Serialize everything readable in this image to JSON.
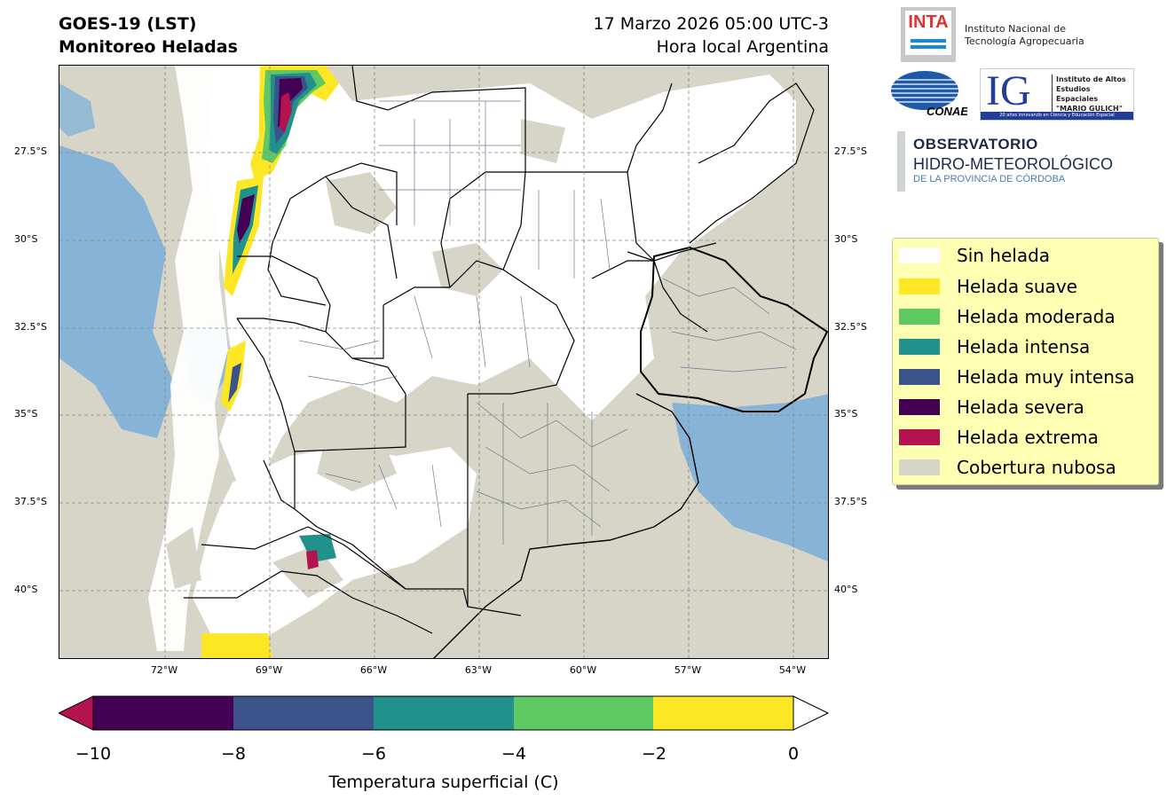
{
  "header": {
    "title_line1": "GOES-19 (LST)",
    "title_line2": "Monitoreo Heladas",
    "date_line1": "17 Marzo 2026 05:00 UTC-3",
    "date_line2": "Hora local Argentina"
  },
  "map": {
    "lat_labels": [
      "27.5°S",
      "30°S",
      "32.5°S",
      "35°S",
      "37.5°S",
      "40°S"
    ],
    "lon_labels": [
      "72°W",
      "69°W",
      "66°W",
      "63°W",
      "60°W",
      "57°W",
      "54°W"
    ],
    "colors": {
      "cloud": "#d6d5c8",
      "ocean_cloudfree": "#79aed8",
      "no_frost": "#ffffff",
      "boundary": "#000000",
      "department_lines": "#6c7a8c"
    }
  },
  "legend": {
    "items": [
      {
        "label": "Sin helada",
        "color": "#ffffff"
      },
      {
        "label": "Helada suave",
        "color": "#fde725"
      },
      {
        "label": "Helada moderada",
        "color": "#5ec962"
      },
      {
        "label": "Helada intensa",
        "color": "#21918c"
      },
      {
        "label": "Helada muy intensa",
        "color": "#3b528b"
      },
      {
        "label": "Helada severa",
        "color": "#440154"
      },
      {
        "label": "Helada extrema",
        "color": "#b5134f"
      },
      {
        "label": "Cobertura nubosa",
        "color": "#d6d5c8"
      }
    ]
  },
  "colorbar": {
    "label": "Temperatura superficial (C)",
    "ticks": [
      "−10",
      "−8",
      "−6",
      "−4",
      "−2",
      "0"
    ],
    "under_color": "#b5134f",
    "over_color": "#ffffff",
    "segments": [
      "#440154",
      "#3b528b",
      "#21918c",
      "#5ec962",
      "#fde725"
    ]
  },
  "logos": {
    "inta_mark": "INTA",
    "inta_name_line1": "Instituto Nacional de",
    "inta_name_line2": "Tecnología Agropecuaria",
    "conae": "CONAE",
    "ig_mark": "IG",
    "ig_line1": "Instituto de Altos",
    "ig_line2": "Estudios Espaciales",
    "ig_line3": "\"MARIO GULICH\"",
    "ig_strip": "20 años innovando en Ciencia y Educación Espacial",
    "obs_line1": "OBSERVATORIO",
    "obs_line2": "HIDRO-METEOROLÓGICO",
    "obs_line3": "DE LA PROVINCIA DE CÓRDOBA"
  }
}
